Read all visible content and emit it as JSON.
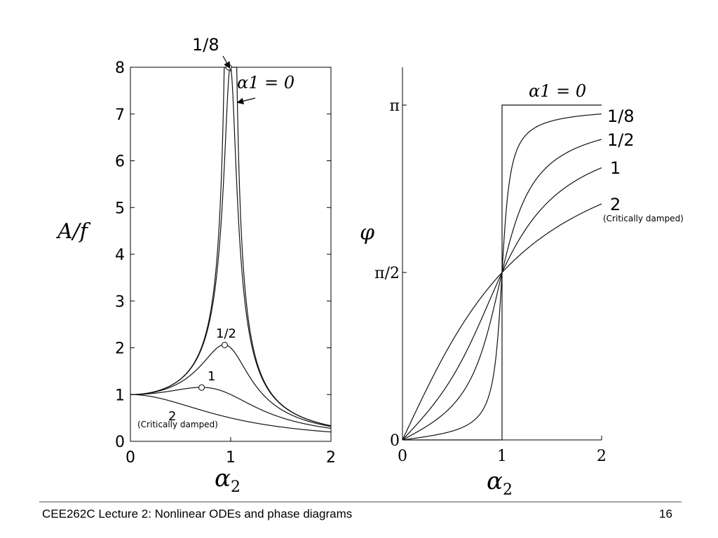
{
  "chart_data": [
    {
      "type": "line",
      "xlabel_base": "α",
      "xlabel_sub": "2",
      "ylabel": "A/f",
      "xlim": [
        0,
        2
      ],
      "ylim": [
        0,
        8
      ],
      "x_ticks": [
        "0",
        "1",
        "2"
      ],
      "y_ticks": [
        "0",
        "1",
        "2",
        "3",
        "4",
        "5",
        "6",
        "7",
        "8"
      ],
      "grid": false,
      "series": [
        {
          "name": "α1 = 0",
          "damping": 0
        },
        {
          "name": "1/8",
          "damping": 0.125
        },
        {
          "name": "1/2",
          "damping": 0.5
        },
        {
          "name": "1",
          "damping": 1
        },
        {
          "name": "2",
          "damping": 2
        }
      ],
      "labels": {
        "alpha_zero": "α1 = 0",
        "one_eighth": "1/8",
        "one_half": "1/2",
        "one": "1",
        "two": "2",
        "critically_damped": "(Critically damped)"
      },
      "peak_markers": [
        {
          "series": "1/8",
          "x": 0.98,
          "y": 8.0
        },
        {
          "series": "1/2",
          "x": 0.94,
          "y": 2.06
        },
        {
          "series": "1",
          "x": 0.71,
          "y": 1.15
        }
      ]
    },
    {
      "type": "line",
      "xlabel_base": "α",
      "xlabel_sub": "2",
      "ylabel": "φ",
      "xlim": [
        0,
        2
      ],
      "ylim": [
        0,
        3.3
      ],
      "x_ticks": [
        "0",
        "1",
        "2"
      ],
      "y_ticks": [
        {
          "label": "0",
          "value": 0
        },
        {
          "label": "π/2",
          "value": 1.5708
        },
        {
          "label": "π",
          "value": 3.1416
        }
      ],
      "grid": false,
      "series": [
        {
          "name": "α1 = 0",
          "damping": 0
        },
        {
          "name": "1/8",
          "damping": 0.125
        },
        {
          "name": "1/2",
          "damping": 0.5
        },
        {
          "name": "1",
          "damping": 1
        },
        {
          "name": "2",
          "damping": 2
        }
      ],
      "labels": {
        "alpha_zero": "α1 = 0",
        "one_eighth": "1/8",
        "one_half": "1/2",
        "one": "1",
        "two": "2",
        "critically_damped": "(Critically damped)"
      }
    }
  ],
  "footer": {
    "title": "CEE262C Lecture 2: Nonlinear ODEs and phase diagrams",
    "page": "16"
  }
}
